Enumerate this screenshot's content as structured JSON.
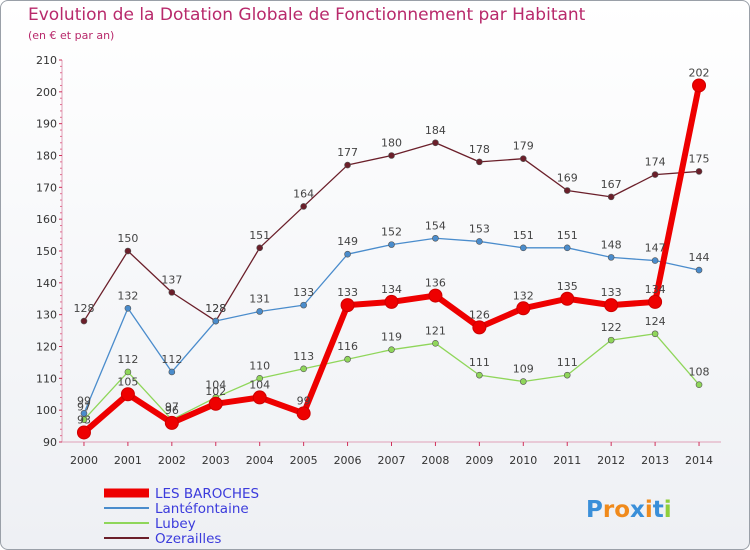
{
  "chart_data": {
    "type": "line",
    "title": "Evolution de la Dotation Globale de Fonctionnement par Habitant",
    "subtitle": "(en € et par an)",
    "x": [
      "2000",
      "2001",
      "2002",
      "2003",
      "2004",
      "2005",
      "2006",
      "2007",
      "2008",
      "2009",
      "2010",
      "2011",
      "2012",
      "2013",
      "2014"
    ],
    "ylim": [
      90,
      210
    ],
    "yticks": [
      90,
      100,
      110,
      120,
      130,
      140,
      150,
      160,
      170,
      180,
      190,
      200,
      210
    ],
    "grid": false,
    "series": [
      {
        "name": "LES BAROCHES",
        "color": "#ee0000",
        "values": [
          93,
          105,
          96,
          102,
          104,
          99,
          133,
          134,
          136,
          126,
          132,
          135,
          133,
          134,
          202
        ]
      },
      {
        "name": "Lantéfontaine",
        "color": "#4a8ccc",
        "values": [
          99,
          132,
          112,
          128,
          131,
          133,
          149,
          152,
          154,
          153,
          151,
          151,
          148,
          147,
          144
        ]
      },
      {
        "name": "Lubey",
        "color": "#8fd65a",
        "values": [
          97,
          112,
          97,
          104,
          110,
          113,
          116,
          119,
          121,
          111,
          109,
          111,
          122,
          124,
          108
        ]
      },
      {
        "name": "Ozerailles",
        "color": "#6b1f2a",
        "values": [
          128,
          150,
          137,
          128,
          151,
          164,
          177,
          180,
          184,
          178,
          179,
          169,
          167,
          174,
          175
        ]
      }
    ],
    "legend_position": "bottom-left"
  },
  "logo": {
    "text": "Proxiti",
    "letter_colors": [
      "#3a8fd9",
      "#f08a1c",
      "#f08a1c",
      "#3a8fd9",
      "#f08a1c",
      "#3a8fd9",
      "#8fcf3c"
    ]
  }
}
